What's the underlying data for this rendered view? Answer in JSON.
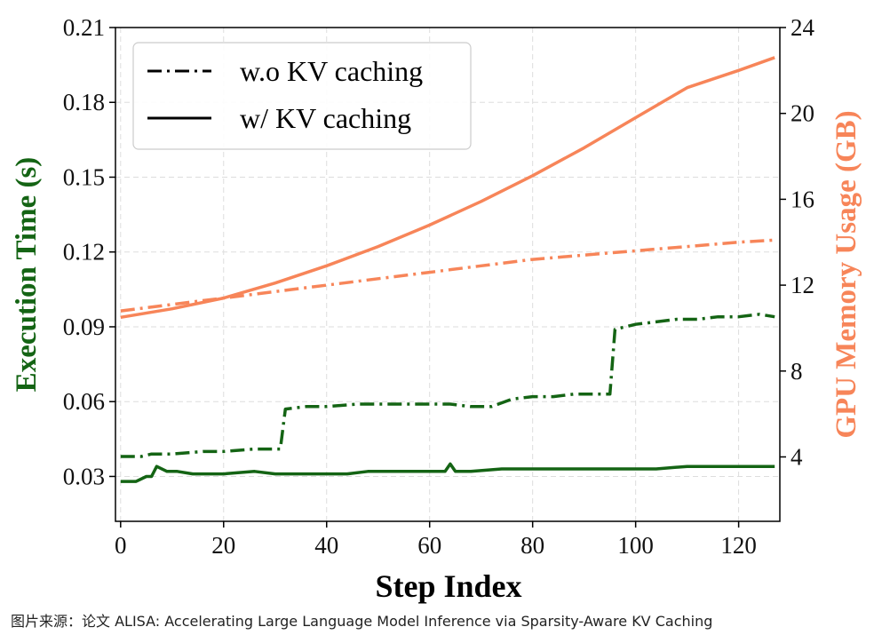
{
  "chart_data": {
    "type": "line",
    "xlabel": "Step Index",
    "ylabel_left": "Execution Time (s)",
    "ylabel_right": "GPU Memory Usage (GB)",
    "x_ticks": [
      "0",
      "20",
      "40",
      "60",
      "80",
      "100",
      "120"
    ],
    "y_left_ticks": [
      "0.03",
      "0.06",
      "0.09",
      "0.12",
      "0.15",
      "0.18",
      "0.21"
    ],
    "y_right_ticks": [
      "4",
      "8",
      "12",
      "16",
      "20",
      "24"
    ],
    "xlim": [
      -1,
      128
    ],
    "ylim_left": [
      0.012,
      0.21
    ],
    "ylim_right": [
      1.0,
      24.0
    ],
    "grid": true,
    "legend": {
      "position": "top-left",
      "entries": [
        {
          "label": "w.o KV caching",
          "style": "dashdot"
        },
        {
          "label": "w/ KV caching",
          "style": "solid"
        }
      ]
    },
    "colors": {
      "time": "#146414",
      "memory": "#f78559",
      "axis_left": "#146414",
      "axis_right": "#f78559"
    },
    "series": [
      {
        "name": "w.o KV caching - Execution Time",
        "axis": "left",
        "style": "dashdot",
        "color": "#146414",
        "points": [
          [
            0,
            0.038
          ],
          [
            2,
            0.038
          ],
          [
            4,
            0.038
          ],
          [
            6,
            0.039
          ],
          [
            10,
            0.039
          ],
          [
            16,
            0.04
          ],
          [
            20,
            0.04
          ],
          [
            26,
            0.041
          ],
          [
            31,
            0.041
          ],
          [
            32,
            0.057
          ],
          [
            36,
            0.058
          ],
          [
            40,
            0.058
          ],
          [
            46,
            0.059
          ],
          [
            52,
            0.059
          ],
          [
            58,
            0.059
          ],
          [
            64,
            0.059
          ],
          [
            68,
            0.058
          ],
          [
            72,
            0.058
          ],
          [
            76,
            0.061
          ],
          [
            80,
            0.062
          ],
          [
            84,
            0.062
          ],
          [
            88,
            0.063
          ],
          [
            92,
            0.063
          ],
          [
            95,
            0.063
          ],
          [
            96,
            0.089
          ],
          [
            100,
            0.091
          ],
          [
            104,
            0.092
          ],
          [
            108,
            0.093
          ],
          [
            112,
            0.093
          ],
          [
            116,
            0.094
          ],
          [
            120,
            0.094
          ],
          [
            124,
            0.095
          ],
          [
            127,
            0.094
          ]
        ]
      },
      {
        "name": "w/ KV caching - Execution Time",
        "axis": "left",
        "style": "solid",
        "color": "#146414",
        "points": [
          [
            0,
            0.028
          ],
          [
            3,
            0.028
          ],
          [
            5,
            0.03
          ],
          [
            6,
            0.03
          ],
          [
            7,
            0.034
          ],
          [
            9,
            0.032
          ],
          [
            11,
            0.032
          ],
          [
            14,
            0.031
          ],
          [
            18,
            0.031
          ],
          [
            20,
            0.031
          ],
          [
            26,
            0.032
          ],
          [
            30,
            0.031
          ],
          [
            36,
            0.031
          ],
          [
            40,
            0.031
          ],
          [
            44,
            0.031
          ],
          [
            48,
            0.032
          ],
          [
            54,
            0.032
          ],
          [
            60,
            0.032
          ],
          [
            63,
            0.032
          ],
          [
            64,
            0.035
          ],
          [
            65,
            0.032
          ],
          [
            68,
            0.032
          ],
          [
            74,
            0.033
          ],
          [
            80,
            0.033
          ],
          [
            86,
            0.033
          ],
          [
            92,
            0.033
          ],
          [
            96,
            0.033
          ],
          [
            100,
            0.033
          ],
          [
            104,
            0.033
          ],
          [
            110,
            0.034
          ],
          [
            116,
            0.034
          ],
          [
            122,
            0.034
          ],
          [
            127,
            0.034
          ]
        ]
      },
      {
        "name": "w.o KV caching - GPU Memory",
        "axis": "right",
        "style": "dashdot",
        "color": "#f78559",
        "points": [
          [
            0,
            10.8
          ],
          [
            10,
            11.1
          ],
          [
            20,
            11.4
          ],
          [
            30,
            11.7
          ],
          [
            40,
            12.0
          ],
          [
            50,
            12.3
          ],
          [
            60,
            12.6
          ],
          [
            70,
            12.9
          ],
          [
            80,
            13.2
          ],
          [
            90,
            13.4
          ],
          [
            100,
            13.6
          ],
          [
            110,
            13.8
          ],
          [
            120,
            14.0
          ],
          [
            127,
            14.1
          ]
        ]
      },
      {
        "name": "w/ KV caching - GPU Memory",
        "axis": "right",
        "style": "solid",
        "color": "#f78559",
        "points": [
          [
            0,
            10.5
          ],
          [
            10,
            10.9
          ],
          [
            20,
            11.4
          ],
          [
            30,
            12.1
          ],
          [
            40,
            12.9
          ],
          [
            50,
            13.8
          ],
          [
            60,
            14.8
          ],
          [
            70,
            15.9
          ],
          [
            80,
            17.1
          ],
          [
            90,
            18.4
          ],
          [
            100,
            19.8
          ],
          [
            110,
            21.2
          ],
          [
            120,
            22.0
          ],
          [
            127,
            22.6
          ]
        ]
      }
    ]
  },
  "caption": "图片来源：论文 ALISA: Accelerating Large Language Model Inference via Sparsity-Aware KV Caching"
}
